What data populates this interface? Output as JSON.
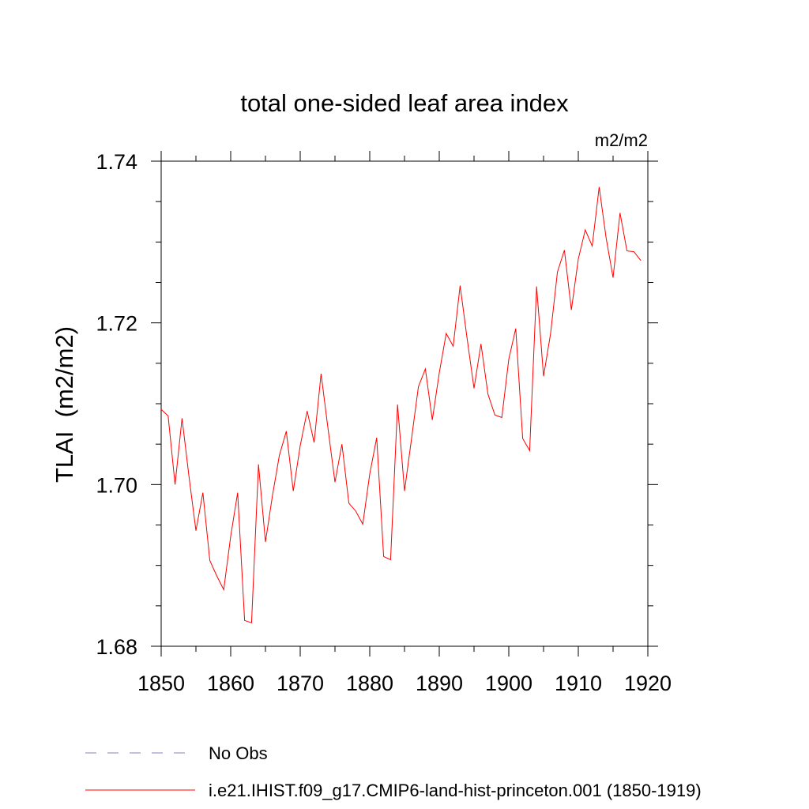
{
  "chart_data": {
    "type": "line",
    "title": "total one-sided leaf area index",
    "units": "m2/m2",
    "ylabel": "TLAI  (m2/m2)",
    "xlabel": "",
    "xlim": [
      1850,
      1920
    ],
    "ylim": [
      1.68,
      1.74
    ],
    "x_ticks": [
      1850,
      1860,
      1870,
      1880,
      1890,
      1900,
      1910,
      1920
    ],
    "x_tick_labels": [
      "1850",
      "1860",
      "1870",
      "1880",
      "1890",
      "1900",
      "1910",
      "1920"
    ],
    "y_ticks": [
      1.68,
      1.7,
      1.72,
      1.74
    ],
    "y_tick_labels": [
      "1.68",
      "1.70",
      "1.72",
      "1.74"
    ],
    "grid": false,
    "legend_position": "bottom-left",
    "series": [
      {
        "name": "i.e21.IHIST.f09_g17.CMIP6-land-hist-princeton.001 (1850-1919)",
        "color": "#ff0000",
        "style": "solid",
        "x": [
          1850,
          1851,
          1852,
          1853,
          1854,
          1855,
          1856,
          1857,
          1858,
          1859,
          1860,
          1861,
          1862,
          1863,
          1864,
          1865,
          1866,
          1867,
          1868,
          1869,
          1870,
          1871,
          1872,
          1873,
          1874,
          1875,
          1876,
          1877,
          1878,
          1879,
          1880,
          1881,
          1882,
          1883,
          1884,
          1885,
          1886,
          1887,
          1888,
          1889,
          1890,
          1891,
          1892,
          1893,
          1894,
          1895,
          1896,
          1897,
          1898,
          1899,
          1900,
          1901,
          1902,
          1903,
          1904,
          1905,
          1906,
          1907,
          1908,
          1909,
          1910,
          1911,
          1912,
          1913,
          1914,
          1915,
          1916,
          1917,
          1918,
          1919
        ],
        "y": [
          1.7093,
          1.7085,
          1.7,
          1.7082,
          1.701,
          1.6943,
          1.699,
          1.6906,
          1.6887,
          1.687,
          1.6936,
          1.699,
          1.6832,
          1.6829,
          1.7025,
          1.6929,
          1.6986,
          1.7036,
          1.7066,
          1.6992,
          1.7048,
          1.7091,
          1.7052,
          1.7137,
          1.7069,
          1.7003,
          1.705,
          1.6977,
          1.6967,
          1.6951,
          1.7013,
          1.7058,
          1.6911,
          1.6907,
          1.7099,
          1.6992,
          1.7056,
          1.7121,
          1.7143,
          1.708,
          1.7138,
          1.7187,
          1.7171,
          1.7246,
          1.7181,
          1.7119,
          1.7174,
          1.7112,
          1.7086,
          1.7083,
          1.7155,
          1.7193,
          1.7057,
          1.7042,
          1.7245,
          1.7134,
          1.7186,
          1.7263,
          1.729,
          1.7216,
          1.7279,
          1.7315,
          1.7295,
          1.7368,
          1.7305,
          1.7256,
          1.7336,
          1.7289,
          1.7288,
          1.7277
        ]
      }
    ],
    "legend": [
      {
        "label": "No Obs",
        "color": "#8a7fc0",
        "style": "dashed"
      },
      {
        "label": "i.e21.IHIST.f09_g17.CMIP6-land-hist-princeton.001 (1850-1919)",
        "color": "#ff0000",
        "style": "solid"
      }
    ]
  }
}
